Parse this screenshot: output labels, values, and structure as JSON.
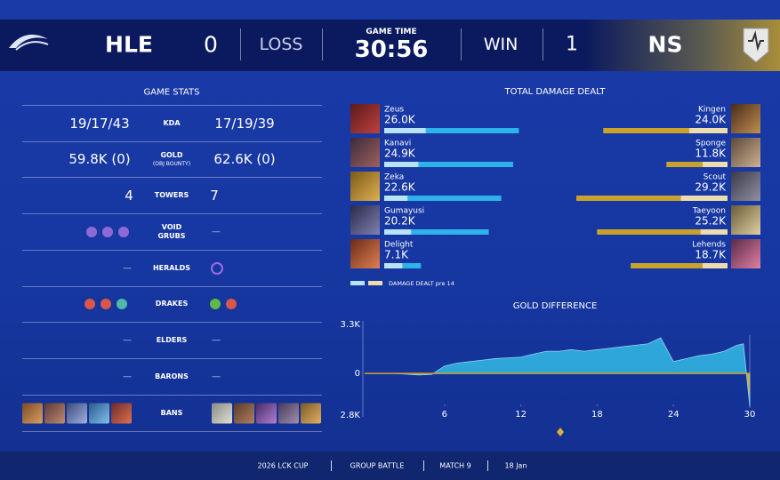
{
  "header": {
    "team_left": "HLE",
    "score_left": "0",
    "result_left": "LOSS",
    "game_time_label": "GAME TIME",
    "game_time": "30:56",
    "result_right": "WIN",
    "score_right": "1",
    "team_right": "NS"
  },
  "game_stats": {
    "title": "GAME STATS",
    "rows": [
      {
        "label": "KDA",
        "left": "19/17/43",
        "right": "17/19/39"
      },
      {
        "label": "GOLD",
        "sublabel": "(OBJ BOUNTY)",
        "left": "59.8K (0)",
        "right": "62.6K (0)"
      },
      {
        "label": "TOWERS",
        "left": "4",
        "right": "7"
      },
      {
        "label": "VOID GRUBS",
        "right": "—"
      },
      {
        "label": "HERALDS",
        "left": "—"
      },
      {
        "label": "DRAKES"
      },
      {
        "label": "ELDERS",
        "left": "—",
        "right": "—"
      },
      {
        "label": "BARONS",
        "left": "—",
        "right": "—"
      },
      {
        "label": "BANS"
      }
    ]
  },
  "chart_data": [
    {
      "type": "bar",
      "orientation": "horizontal",
      "title": "TOTAL DAMAGE DEALT",
      "legend_label": "DAMAGE DEALT pre 14",
      "series": [
        {
          "color": "#2db3ea",
          "pre14_color": "#b9e3f5",
          "players": [
            "Zeus",
            "Kanavi",
            "Zeka",
            "Gumayusi",
            "Delight"
          ],
          "values": [
            26000,
            24900,
            22600,
            20200,
            7100
          ],
          "value_labels": [
            "26.0K",
            "24.9K",
            "22.6K",
            "20.2K",
            "7.1K"
          ],
          "pre14_values": [
            8000,
            6600,
            4500,
            5200,
            3500
          ]
        },
        {
          "color": "#c9a22c",
          "pre14_color": "#ecdcae",
          "players": [
            "Kingen",
            "Sponge",
            "Scout",
            "Taeyoon",
            "Lehends"
          ],
          "values": [
            24000,
            11800,
            29200,
            25200,
            18700
          ],
          "value_labels": [
            "24.0K",
            "11.8K",
            "29.2K",
            "25.2K",
            "18.7K"
          ],
          "pre14_values": [
            7400,
            4800,
            9000,
            5200,
            4800
          ]
        }
      ]
    },
    {
      "type": "area",
      "title": "GOLD DIFFERENCE",
      "x": [
        0,
        1,
        2,
        3,
        4,
        5,
        6,
        7,
        8,
        9,
        10,
        11,
        12,
        13,
        14,
        15,
        16,
        17,
        18,
        19,
        20,
        21,
        22,
        23,
        24,
        25,
        26,
        27,
        28,
        29,
        29.5,
        30
      ],
      "values": [
        0,
        0,
        0,
        -50,
        -100,
        -60,
        500,
        700,
        800,
        900,
        1000,
        1050,
        1100,
        1300,
        1500,
        1500,
        1600,
        1500,
        1600,
        1700,
        1800,
        1900,
        2000,
        2400,
        800,
        1000,
        1200,
        1300,
        1500,
        1900,
        2000,
        -2200
      ],
      "xlim": [
        0,
        30
      ],
      "ylim": [
        -2800,
        3300
      ],
      "xticks": [
        6,
        12,
        18,
        24,
        30
      ],
      "yticks": [
        {
          "value": 3300,
          "label": "3.3K"
        },
        0,
        {
          "value": -2800,
          "label": "2.8K"
        }
      ],
      "color_positive": "#2fa6da",
      "color_negative": "#d4a72c",
      "zero_line_color": "#c9a22c"
    }
  ],
  "footer": [
    "2026 LCK CUP",
    "GROUP BATTLE",
    "MATCH 9",
    "18 Jan"
  ]
}
